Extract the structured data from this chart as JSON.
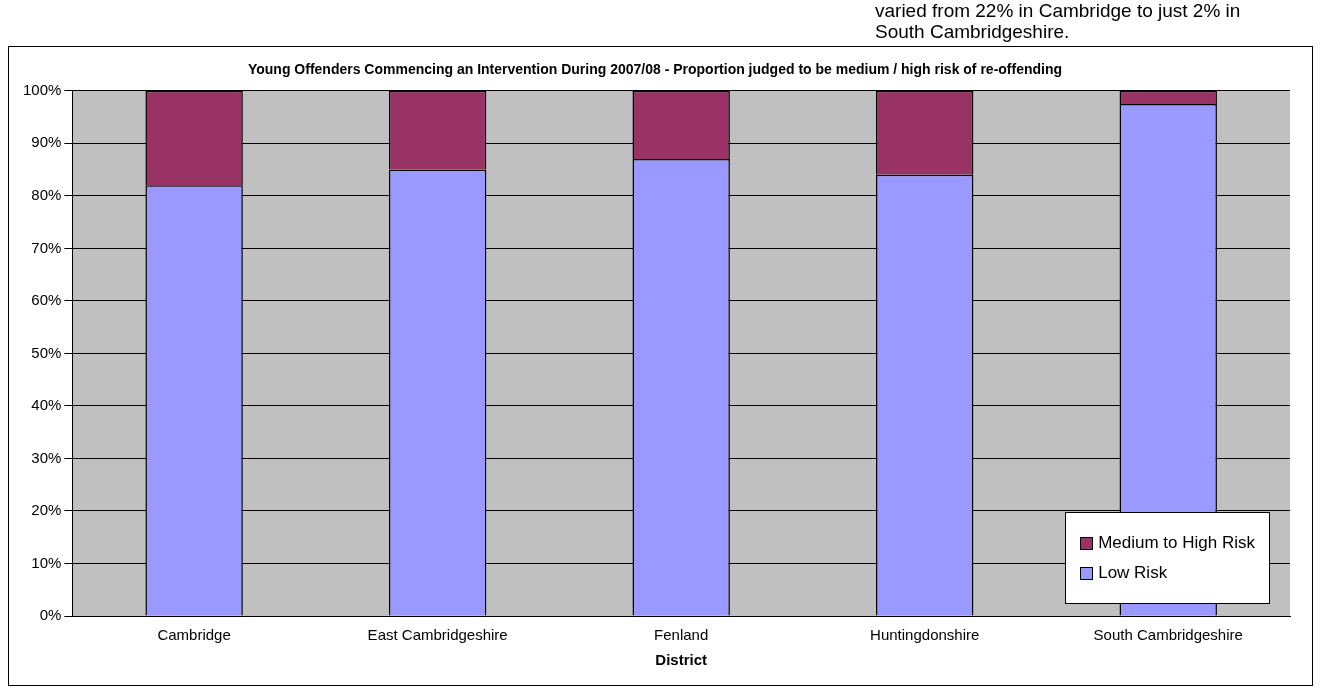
{
  "chart_data": {
    "type": "bar",
    "title": "Young Offenders Commencing an Intervention During 2007/08 - Proportion judged to be medium / high risk of re-offending",
    "xlabel": "District",
    "categories": [
      "Cambridge",
      "East Cambridgeshire",
      "Fenland",
      "Huntingdonshire",
      "South Cambridgeshire"
    ],
    "series": [
      {
        "name": "Low Risk",
        "color": "#9999ff",
        "values": [
          82,
          85,
          87,
          84,
          97.5
        ]
      },
      {
        "name": "Medium to High Risk",
        "color": "#993366",
        "values": [
          18,
          15,
          13,
          16,
          2.5
        ]
      }
    ],
    "stacked": true,
    "ylim": [
      0,
      100
    ],
    "yticks": [
      {
        "value": 0,
        "label": "0%"
      },
      {
        "value": 10,
        "label": "10%"
      },
      {
        "value": 20,
        "label": "20%"
      },
      {
        "value": 30,
        "label": "30%"
      },
      {
        "value": 40,
        "label": "40%"
      },
      {
        "value": 50,
        "label": "50%"
      },
      {
        "value": 60,
        "label": "60%"
      },
      {
        "value": 70,
        "label": "70%"
      },
      {
        "value": 80,
        "label": "80%"
      },
      {
        "value": 90,
        "label": "90%"
      },
      {
        "value": 100,
        "label": "100%"
      }
    ],
    "grid": "y",
    "legend": "bottom right",
    "annotations": [
      "varied from 22% in Cambridge to just 2% in South Cambridgeshire."
    ]
  }
}
